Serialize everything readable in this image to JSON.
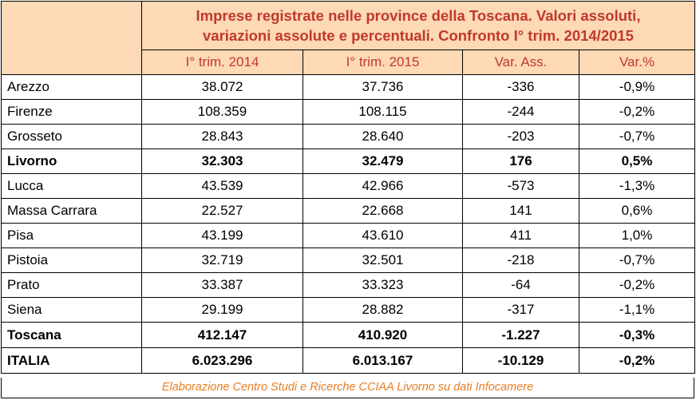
{
  "table": {
    "title_line1": "Imprese registrate nelle province della Toscana. Valori assoluti,",
    "title_line2": "variazioni assolute e percentuali. Confronto I° trim. 2014/2015",
    "columns": [
      "I° trim. 2014",
      "I° trim. 2015",
      "Var. Ass.",
      "Var.%"
    ],
    "rows": [
      {
        "name": "Arezzo",
        "v2014": "38.072",
        "v2015": "37.736",
        "var_ass": "-336",
        "var_pct": "-0,9%",
        "bold": false
      },
      {
        "name": "Firenze",
        "v2014": "108.359",
        "v2015": "108.115",
        "var_ass": "-244",
        "var_pct": "-0,2%",
        "bold": false
      },
      {
        "name": "Grosseto",
        "v2014": "28.843",
        "v2015": "28.640",
        "var_ass": "-203",
        "var_pct": "-0,7%",
        "bold": false
      },
      {
        "name": "Livorno",
        "v2014": "32.303",
        "v2015": "32.479",
        "var_ass": "176",
        "var_pct": "0,5%",
        "bold": true
      },
      {
        "name": "Lucca",
        "v2014": "43.539",
        "v2015": "42.966",
        "var_ass": "-573",
        "var_pct": "-1,3%",
        "bold": false
      },
      {
        "name": "Massa Carrara",
        "v2014": "22.527",
        "v2015": "22.668",
        "var_ass": "141",
        "var_pct": "0,6%",
        "bold": false
      },
      {
        "name": "Pisa",
        "v2014": "43.199",
        "v2015": "43.610",
        "var_ass": "411",
        "var_pct": "1,0%",
        "bold": false
      },
      {
        "name": "Pistoia",
        "v2014": "32.719",
        "v2015": "32.501",
        "var_ass": "-218",
        "var_pct": "-0,7%",
        "bold": false
      },
      {
        "name": "Prato",
        "v2014": "33.387",
        "v2015": "33.323",
        "var_ass": "-64",
        "var_pct": "-0,2%",
        "bold": false
      },
      {
        "name": "Siena",
        "v2014": "29.199",
        "v2015": "28.882",
        "var_ass": "-317",
        "var_pct": "-1,1%",
        "bold": false
      }
    ],
    "totals": [
      {
        "name": "Toscana",
        "v2014": "412.147",
        "v2015": "410.920",
        "var_ass": "-1.227",
        "var_pct": "-0,3%"
      },
      {
        "name": "ITALIA",
        "v2014": "6.023.296",
        "v2015": "6.013.167",
        "var_ass": "-10.129",
        "var_pct": "-0,2%"
      }
    ],
    "footer": "Elaborazione Centro Studi e Ricerche CCIAA Livorno su dati Infocamere"
  },
  "colors": {
    "header_bg": "#fdd9b5",
    "header_text": "#c0392b",
    "footer_text": "#e67e22"
  }
}
